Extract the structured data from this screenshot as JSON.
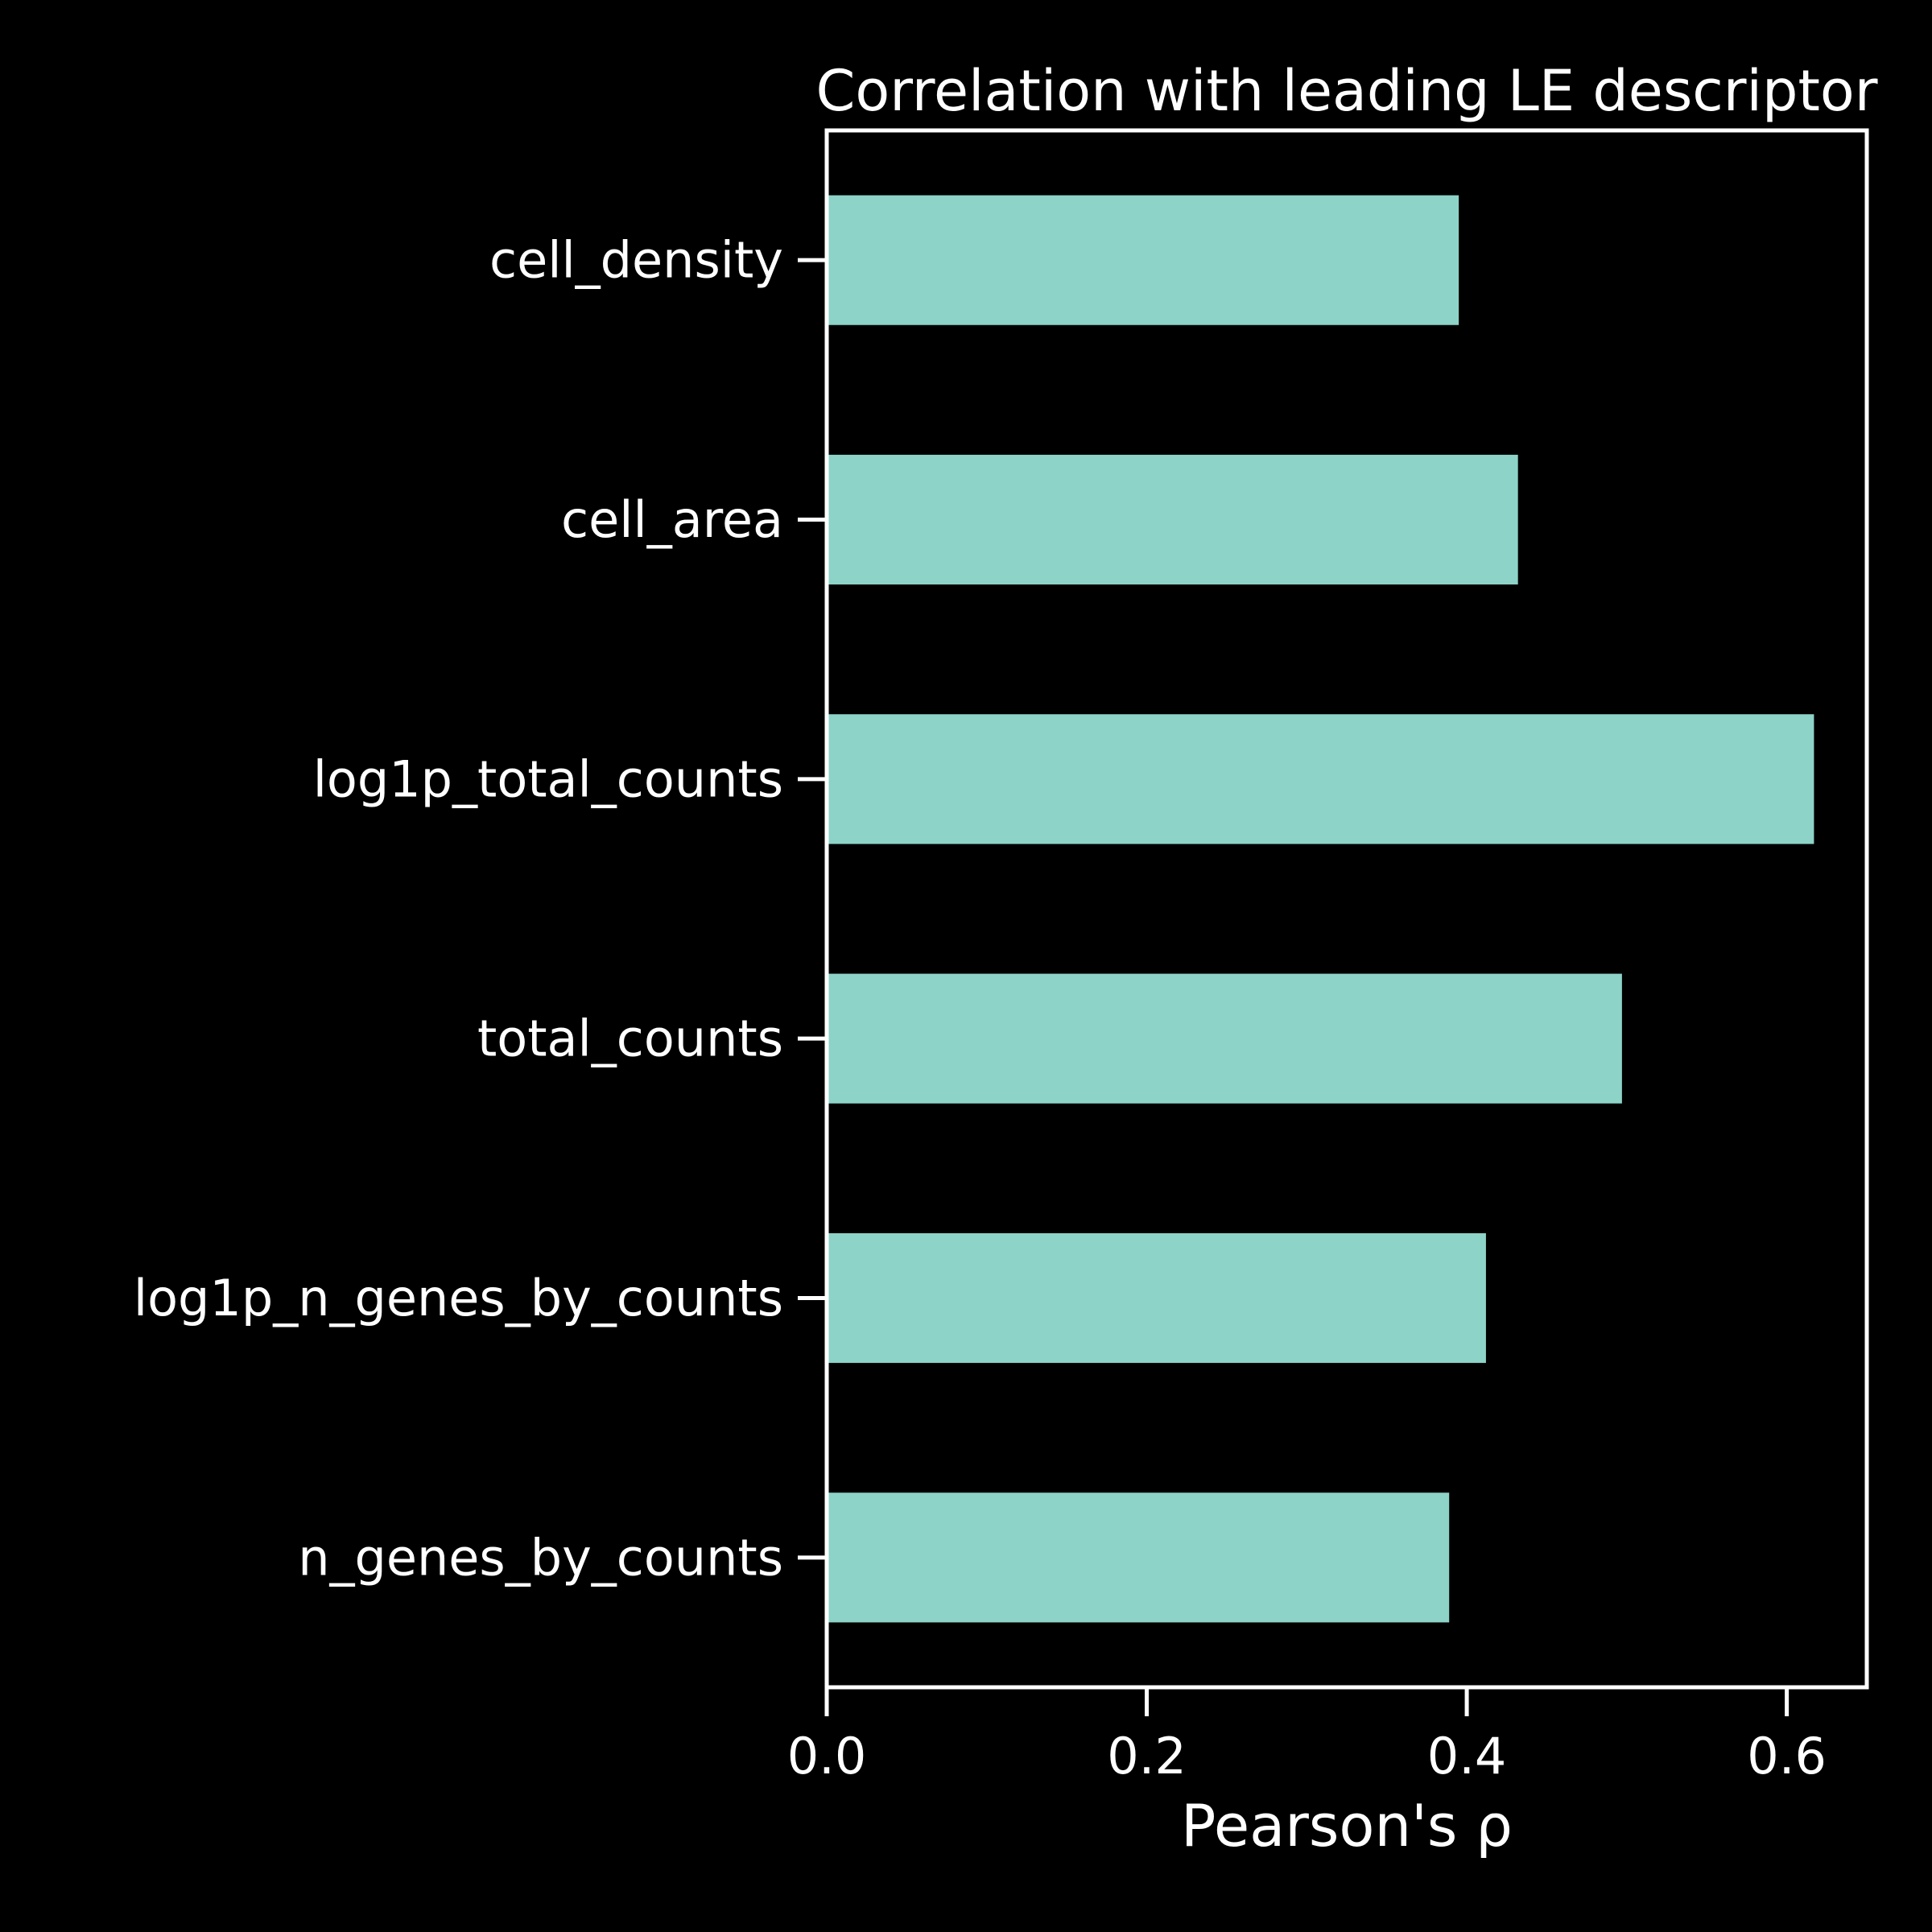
{
  "chart_data": {
    "type": "bar",
    "orientation": "horizontal",
    "title": "Correlation with leading LE descriptor",
    "xlabel": "Pearson's ρ",
    "ylabel": "",
    "categories": [
      "cell_density",
      "cell_area",
      "log1p_total_counts",
      "total_counts",
      "log1p_n_genes_by_counts",
      "n_genes_by_counts"
    ],
    "values": [
      0.395,
      0.432,
      0.617,
      0.497,
      0.412,
      0.389
    ],
    "xlim": [
      0,
      0.65
    ],
    "xticks": [
      0.0,
      0.2,
      0.4,
      0.6
    ],
    "xtick_labels": [
      "0.0",
      "0.2",
      "0.4",
      "0.6"
    ],
    "grid": false,
    "bar_color": "#8dd3c7",
    "background_color": "#000000",
    "text_color": "#ffffff"
  }
}
